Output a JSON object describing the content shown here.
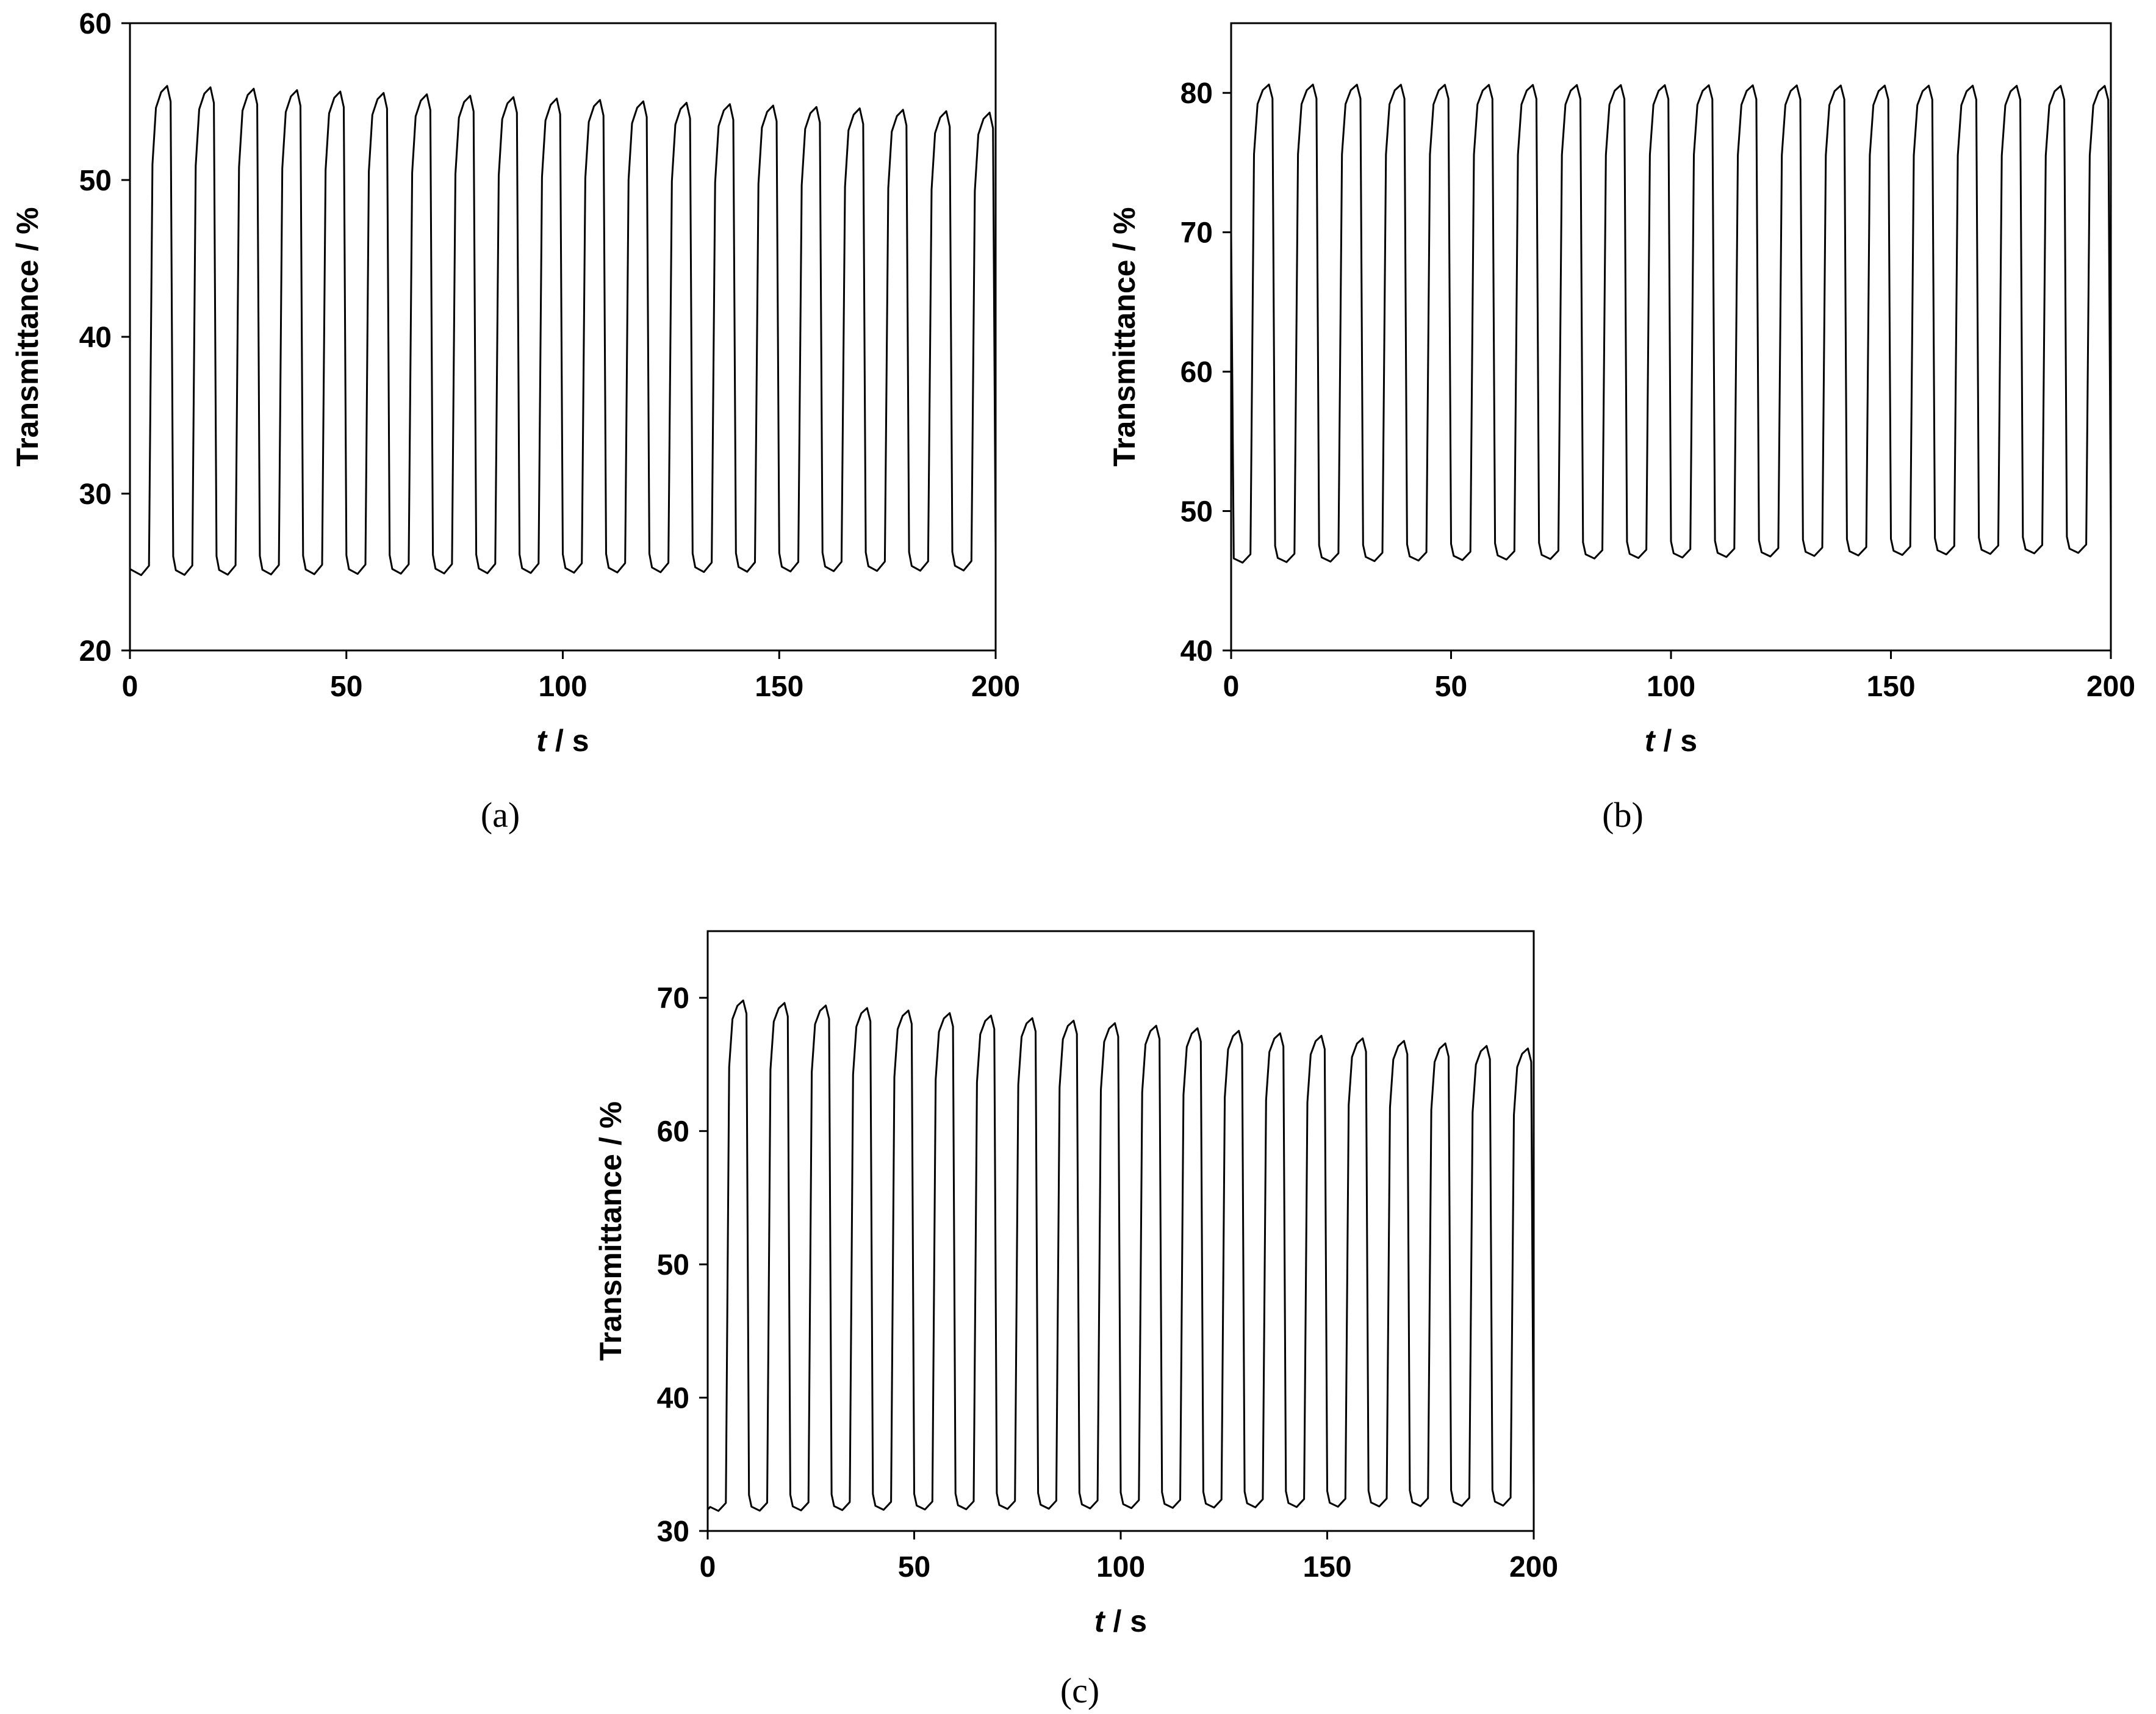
{
  "chart_data": [
    {
      "panel": "(a)",
      "type": "line",
      "xlabel_italic": "t",
      "xlabel_rest": " / s",
      "ylabel": "Transmittance / %",
      "xlim": [
        0,
        200
      ],
      "ylim": [
        20,
        60
      ],
      "xticks": [
        "0",
        "50",
        "100",
        "150",
        "200"
      ],
      "yticks": [
        "20",
        "30",
        "40",
        "50",
        "60"
      ],
      "grid": false,
      "series": [
        {
          "period_s": 10,
          "cycles": 20,
          "high_start": 56.0,
          "high_end": 54.3,
          "low_start": 24.8,
          "low_end": 25.1,
          "initial_value": 25.2
        }
      ]
    },
    {
      "panel": "(b)",
      "type": "line",
      "xlabel_italic": "t",
      "xlabel_rest": " / s",
      "ylabel": "Transmittance / %",
      "xlim": [
        0,
        200
      ],
      "ylim": [
        40,
        85
      ],
      "xticks": [
        "0",
        "50",
        "100",
        "150",
        "200"
      ],
      "yticks": [
        "40",
        "50",
        "60",
        "70",
        "80"
      ],
      "grid": false,
      "series": [
        {
          "period_s": 10,
          "cycles": 20,
          "high_start": 80.6,
          "high_end": 80.5,
          "low_start": 46.3,
          "low_end": 47.0,
          "initial_value": 70.0
        }
      ]
    },
    {
      "panel": "(c)",
      "type": "line",
      "xlabel_italic": "t",
      "xlabel_rest": " / s",
      "ylabel": "Transmittance / %",
      "xlim": [
        0,
        200
      ],
      "ylim": [
        30,
        75
      ],
      "xticks": [
        "0",
        "50",
        "100",
        "150",
        "200"
      ],
      "yticks": [
        "30",
        "40",
        "50",
        "60",
        "70"
      ],
      "grid": false,
      "series": [
        {
          "period_s": 10,
          "cycles": 20,
          "high_start": 69.8,
          "high_end": 66.2,
          "low_start": 31.5,
          "low_end": 31.9,
          "initial_value": 31.6
        }
      ]
    }
  ]
}
